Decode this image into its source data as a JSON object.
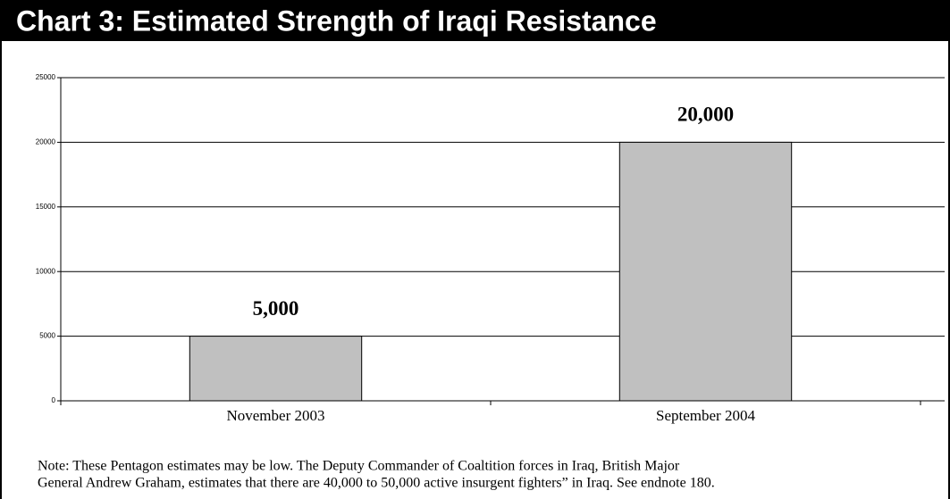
{
  "chart_data": {
    "type": "bar",
    "title": "Chart 3: Estimated Strength of Iraqi Resistance",
    "categories": [
      "November 2003",
      "September 2004"
    ],
    "values": [
      5000,
      20000
    ],
    "value_labels": [
      "5,000",
      "20,000"
    ],
    "color": "#c0c0c0",
    "ylim": [
      0,
      25000
    ],
    "yticks": [
      0,
      5000,
      10000,
      15000,
      20000,
      25000
    ],
    "grid": true,
    "note": [
      "Note: These Pentagon estimates may be low. The Deputy Commander of Coaltition forces in Iraq, British Major",
      "General Andrew Graham, estimates that there are 40,000 to 50,000 active insurgent fighters” in Iraq. See endnote 180."
    ]
  }
}
